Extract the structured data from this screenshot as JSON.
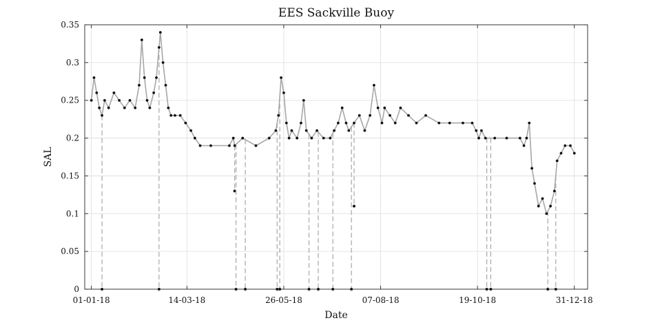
{
  "chart_data": {
    "type": "line",
    "title": "EES Sackville Buoy",
    "xlabel": "Date",
    "ylabel": "SAL",
    "x_tick_labels": [
      "01-01-18",
      "14-03-18",
      "26-05-18",
      "07-08-18",
      "19-10-18",
      "31-12-18"
    ],
    "x_tick_dates": [
      "2018-01-01",
      "2018-03-14",
      "2018-05-26",
      "2018-08-07",
      "2018-10-19",
      "2018-12-31"
    ],
    "xlim": [
      "2017-12-27",
      "2019-01-10"
    ],
    "y_tick_labels": [
      "0",
      "0.05",
      "0.1",
      "0.15",
      "0.2",
      "0.25",
      "0.3",
      "0.35"
    ],
    "y_ticks": [
      0,
      0.05,
      0.1,
      0.15,
      0.2,
      0.25,
      0.3,
      0.35
    ],
    "ylim": [
      0,
      0.35
    ],
    "grid": true,
    "series_colors": {
      "line": "#a6a6a6",
      "markers": "#111111"
    },
    "series": [
      {
        "x": [
          "2018-01-01",
          "2018-01-03",
          "2018-01-05",
          "2018-01-07",
          "2018-01-09",
          "2018-01-11",
          "2018-01-14",
          "2018-01-18",
          "2018-01-22",
          "2018-01-26",
          "2018-01-30",
          "2018-02-03",
          "2018-02-06",
          "2018-02-08",
          "2018-02-10",
          "2018-02-12",
          "2018-02-14",
          "2018-02-17",
          "2018-02-19",
          "2018-02-21",
          "2018-02-22",
          "2018-02-24",
          "2018-02-26",
          "2018-02-28",
          "2018-03-02",
          "2018-03-05",
          "2018-03-09",
          "2018-03-13",
          "2018-03-17",
          "2018-03-20",
          "2018-03-24",
          "2018-04-01",
          "2018-04-15",
          "2018-04-18",
          "2018-04-19",
          "2018-04-25",
          "2018-05-05",
          "2018-05-15",
          "2018-05-20",
          "2018-05-22",
          "2018-05-24",
          "2018-05-26",
          "2018-05-28",
          "2018-05-30",
          "2018-06-01",
          "2018-06-05",
          "2018-06-08",
          "2018-06-10",
          "2018-06-12",
          "2018-06-16",
          "2018-06-20",
          "2018-06-25",
          "2018-06-30",
          "2018-07-03",
          "2018-07-06",
          "2018-07-09",
          "2018-07-12",
          "2018-07-14",
          "2018-07-18",
          "2018-07-22",
          "2018-07-26",
          "2018-07-30",
          "2018-08-02",
          "2018-08-05",
          "2018-08-08",
          "2018-08-10",
          "2018-08-14",
          "2018-08-18",
          "2018-08-22",
          "2018-08-28",
          "2018-09-03",
          "2018-09-10",
          "2018-09-20",
          "2018-09-28",
          "2018-10-08",
          "2018-10-15",
          "2018-10-18",
          "2018-10-20",
          "2018-10-22",
          "2018-10-25",
          "2018-11-01",
          "2018-11-10",
          "2018-11-20",
          "2018-11-23",
          "2018-11-25",
          "2018-11-27",
          "2018-11-29",
          "2018-12-01",
          "2018-12-04",
          "2018-12-07",
          "2018-12-10",
          "2018-12-13",
          "2018-12-16",
          "2018-12-18",
          "2018-12-21",
          "2018-12-24",
          "2018-12-28",
          "2018-12-31"
        ],
        "y": [
          0.25,
          0.28,
          0.26,
          0.24,
          0.23,
          0.25,
          0.24,
          0.26,
          0.25,
          0.24,
          0.25,
          0.24,
          0.27,
          0.33,
          0.28,
          0.25,
          0.24,
          0.26,
          0.28,
          0.32,
          0.34,
          0.3,
          0.27,
          0.24,
          0.23,
          0.23,
          0.23,
          0.22,
          0.21,
          0.2,
          0.19,
          0.19,
          0.19,
          0.2,
          0.19,
          0.2,
          0.19,
          0.2,
          0.21,
          0.23,
          0.28,
          0.26,
          0.22,
          0.2,
          0.21,
          0.2,
          0.22,
          0.25,
          0.21,
          0.2,
          0.21,
          0.2,
          0.2,
          0.21,
          0.22,
          0.24,
          0.22,
          0.21,
          0.22,
          0.23,
          0.21,
          0.23,
          0.27,
          0.24,
          0.22,
          0.24,
          0.23,
          0.22,
          0.24,
          0.23,
          0.22,
          0.23,
          0.22,
          0.22,
          0.22,
          0.22,
          0.21,
          0.2,
          0.21,
          0.2,
          0.2,
          0.2,
          0.2,
          0.19,
          0.2,
          0.22,
          0.16,
          0.14,
          0.11,
          0.12,
          0.1,
          0.11,
          0.13,
          0.17,
          0.18,
          0.19,
          0.19,
          0.18
        ]
      }
    ],
    "dropouts": [
      {
        "date": "2018-01-09",
        "to": 0
      },
      {
        "date": "2018-02-21",
        "to": 0
      },
      {
        "date": "2018-04-19",
        "to": 0.13
      },
      {
        "date": "2018-04-20",
        "to": 0
      },
      {
        "date": "2018-04-27",
        "to": 0
      },
      {
        "date": "2018-05-21",
        "to": 0
      },
      {
        "date": "2018-05-23",
        "to": 0
      },
      {
        "date": "2018-06-14",
        "to": 0
      },
      {
        "date": "2018-06-21",
        "to": 0
      },
      {
        "date": "2018-07-02",
        "to": 0
      },
      {
        "date": "2018-07-16",
        "to": 0
      },
      {
        "date": "2018-07-18",
        "to": 0.11
      },
      {
        "date": "2018-10-26",
        "to": 0
      },
      {
        "date": "2018-10-29",
        "to": 0
      },
      {
        "date": "2018-12-11",
        "to": 0
      },
      {
        "date": "2018-12-17",
        "to": 0
      }
    ]
  }
}
